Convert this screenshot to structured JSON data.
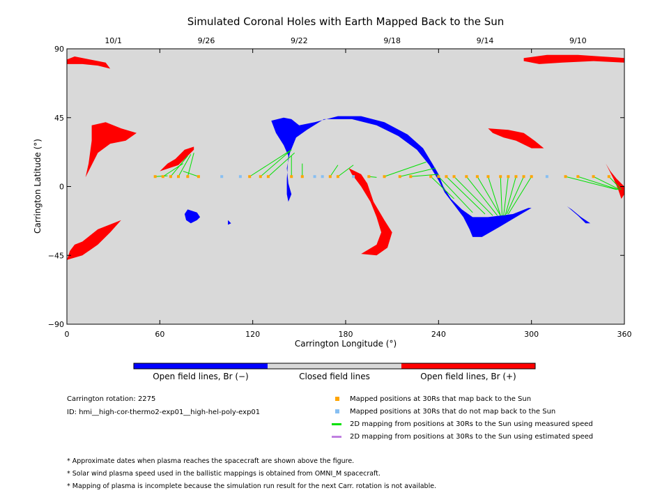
{
  "chart_data": {
    "type": "scatter",
    "title": "Simulated Coronal Holes with Earth Mapped Back to the Sun",
    "xlabel": "Carrington Longitude (°)",
    "ylabel": "Carrington Latitude (°)",
    "xlim": [
      0,
      360
    ],
    "ylim": [
      -90,
      90
    ],
    "x_ticks": [
      0,
      60,
      120,
      180,
      240,
      300,
      360
    ],
    "y_ticks": [
      -90,
      -45,
      0,
      45,
      90
    ],
    "y_tick_labels": [
      "−90",
      "−45",
      "0",
      "45",
      "90"
    ],
    "top_axis_dates": [
      {
        "label": "10/1",
        "lon": 30
      },
      {
        "label": "9/26",
        "lon": 90
      },
      {
        "label": "9/22",
        "lon": 150
      },
      {
        "label": "9/18",
        "lon": 210
      },
      {
        "label": "9/14",
        "lon": 270
      },
      {
        "label": "9/10",
        "lon": 330
      }
    ],
    "background_color": "#d9d9d9",
    "colors": {
      "open_negative": "#0000ff",
      "closed": "#d9d9d9",
      "open_positive": "#ff0000",
      "mapped": "#ffa500",
      "not_mapped": "#87bff2",
      "measured_line": "#00e000",
      "estimated_line": "#c080e0"
    },
    "coronal_holes": [
      {
        "polarity": "positive",
        "points": [
          [
            0,
            83
          ],
          [
            5,
            85
          ],
          [
            15,
            83
          ],
          [
            25,
            81
          ],
          [
            28,
            77
          ],
          [
            20,
            79
          ],
          [
            10,
            80
          ],
          [
            0,
            80
          ]
        ]
      },
      {
        "polarity": "positive",
        "points": [
          [
            295,
            84
          ],
          [
            310,
            86
          ],
          [
            330,
            86
          ],
          [
            345,
            85
          ],
          [
            360,
            84
          ],
          [
            360,
            81
          ],
          [
            340,
            82
          ],
          [
            320,
            81
          ],
          [
            305,
            80
          ],
          [
            295,
            82
          ]
        ]
      },
      {
        "polarity": "positive",
        "points": [
          [
            16,
            40
          ],
          [
            25,
            42
          ],
          [
            35,
            38
          ],
          [
            45,
            35
          ],
          [
            38,
            30
          ],
          [
            28,
            28
          ],
          [
            20,
            22
          ],
          [
            14,
            10
          ],
          [
            12,
            6
          ],
          [
            14,
            15
          ],
          [
            16,
            30
          ]
        ]
      },
      {
        "polarity": "positive",
        "points": [
          [
            60,
            10
          ],
          [
            72,
            14
          ],
          [
            75,
            17
          ],
          [
            82,
            24
          ],
          [
            82,
            26
          ],
          [
            76,
            24
          ],
          [
            70,
            18
          ],
          [
            65,
            15
          ]
        ]
      },
      {
        "polarity": "positive",
        "points": [
          [
            0,
            -48
          ],
          [
            10,
            -45
          ],
          [
            20,
            -38
          ],
          [
            28,
            -30
          ],
          [
            35,
            -22
          ],
          [
            20,
            -28
          ],
          [
            10,
            -36
          ],
          [
            5,
            -38
          ],
          [
            2,
            -42
          ]
        ]
      },
      {
        "polarity": "positive",
        "points": [
          [
            182,
            12
          ],
          [
            190,
            8
          ],
          [
            194,
            2
          ],
          [
            198,
            -10
          ],
          [
            205,
            -22
          ],
          [
            210,
            -30
          ],
          [
            207,
            -40
          ],
          [
            200,
            -45
          ],
          [
            190,
            -44
          ],
          [
            200,
            -38
          ],
          [
            203,
            -30
          ],
          [
            200,
            -20
          ],
          [
            196,
            -10
          ],
          [
            190,
            0
          ],
          [
            184,
            8
          ]
        ]
      },
      {
        "polarity": "positive",
        "points": [
          [
            272,
            38
          ],
          [
            285,
            37
          ],
          [
            295,
            35
          ],
          [
            302,
            30
          ],
          [
            308,
            25
          ],
          [
            300,
            25
          ],
          [
            290,
            30
          ],
          [
            282,
            32
          ],
          [
            275,
            35
          ]
        ]
      },
      {
        "polarity": "positive",
        "points": [
          [
            348,
            15
          ],
          [
            353,
            5
          ],
          [
            356,
            -2
          ],
          [
            358,
            -8
          ],
          [
            360,
            -5
          ],
          [
            360,
            0
          ],
          [
            355,
            5
          ],
          [
            351,
            10
          ]
        ]
      },
      {
        "polarity": "negative",
        "points": [
          [
            132,
            43
          ],
          [
            140,
            45
          ],
          [
            145,
            44
          ],
          [
            150,
            40
          ],
          [
            160,
            42
          ],
          [
            175,
            46
          ],
          [
            190,
            46
          ],
          [
            205,
            42
          ],
          [
            220,
            34
          ],
          [
            230,
            25
          ],
          [
            236,
            15
          ],
          [
            240,
            8
          ],
          [
            243,
            0
          ],
          [
            248,
            -8
          ],
          [
            255,
            -15
          ],
          [
            262,
            -20
          ],
          [
            272,
            -20
          ],
          [
            288,
            -18
          ],
          [
            298,
            -14
          ],
          [
            300,
            -14
          ],
          [
            290,
            -20
          ],
          [
            280,
            -26
          ],
          [
            268,
            -33
          ],
          [
            262,
            -33
          ],
          [
            260,
            -28
          ],
          [
            256,
            -20
          ],
          [
            250,
            -12
          ],
          [
            244,
            -4
          ],
          [
            240,
            4
          ],
          [
            234,
            14
          ],
          [
            226,
            24
          ],
          [
            214,
            33
          ],
          [
            200,
            40
          ],
          [
            184,
            44
          ],
          [
            166,
            44
          ],
          [
            155,
            37
          ],
          [
            148,
            32
          ],
          [
            144,
            22
          ],
          [
            142,
            12
          ],
          [
            143,
            2
          ],
          [
            145,
            -5
          ],
          [
            143,
            -10
          ],
          [
            142,
            -5
          ],
          [
            142,
            5
          ],
          [
            143,
            20
          ],
          [
            140,
            27
          ],
          [
            135,
            35
          ]
        ]
      },
      {
        "polarity": "negative",
        "points": [
          [
            78,
            -15
          ],
          [
            84,
            -17
          ],
          [
            86,
            -20
          ],
          [
            84,
            -22
          ],
          [
            80,
            -24
          ],
          [
            77,
            -22
          ],
          [
            76,
            -18
          ]
        ]
      },
      {
        "polarity": "negative",
        "points": [
          [
            323,
            -13
          ],
          [
            330,
            -19
          ],
          [
            335,
            -24
          ],
          [
            338,
            -24
          ],
          [
            332,
            -20
          ],
          [
            326,
            -15
          ]
        ]
      },
      {
        "polarity": "negative",
        "points": [
          [
            104,
            -22
          ],
          [
            106,
            -24
          ],
          [
            104,
            -25
          ]
        ]
      }
    ],
    "mapped_positions_30Rs": [
      {
        "lon": 57,
        "lat": 6.5,
        "maps_back": true,
        "sun_lon": 65,
        "sun_lat": 7
      },
      {
        "lon": 62,
        "lat": 6.5,
        "maps_back": true,
        "sun_lon": 75,
        "sun_lat": 15
      },
      {
        "lon": 67,
        "lat": 6.5,
        "maps_back": true,
        "sun_lon": 78,
        "sun_lat": 20
      },
      {
        "lon": 72,
        "lat": 6.5,
        "maps_back": true,
        "sun_lon": 80,
        "sun_lat": 21
      },
      {
        "lon": 78,
        "lat": 6.5,
        "maps_back": true,
        "sun_lon": 82,
        "sun_lat": 22
      },
      {
        "lon": 85,
        "lat": 6.5,
        "maps_back": true,
        "sun_lon": 75,
        "sun_lat": 10
      },
      {
        "lon": 100,
        "lat": 6.5,
        "maps_back": false
      },
      {
        "lon": 112,
        "lat": 6.5,
        "maps_back": false
      },
      {
        "lon": 118,
        "lat": 6.5,
        "maps_back": true,
        "sun_lon": 145,
        "sun_lat": 24
      },
      {
        "lon": 125,
        "lat": 6.5,
        "maps_back": true,
        "sun_lon": 145,
        "sun_lat": 24
      },
      {
        "lon": 130,
        "lat": 6.5,
        "maps_back": true,
        "sun_lon": 147,
        "sun_lat": 22
      },
      {
        "lon": 145,
        "lat": 6.5,
        "maps_back": true,
        "sun_lon": 145,
        "sun_lat": 20
      },
      {
        "lon": 152,
        "lat": 6.5,
        "maps_back": true,
        "sun_lon": 152,
        "sun_lat": 15
      },
      {
        "lon": 160,
        "lat": 6.5,
        "maps_back": false
      },
      {
        "lon": 165,
        "lat": 6.5,
        "maps_back": false
      },
      {
        "lon": 170,
        "lat": 6.5,
        "maps_back": true,
        "sun_lon": 175,
        "sun_lat": 14
      },
      {
        "lon": 175,
        "lat": 6.5,
        "maps_back": true,
        "sun_lon": 185,
        "sun_lat": 14
      },
      {
        "lon": 185,
        "lat": 6.5,
        "maps_back": false
      },
      {
        "lon": 195,
        "lat": 6.5,
        "maps_back": true,
        "sun_lon": 200,
        "sun_lat": 6
      },
      {
        "lon": 205,
        "lat": 6.5,
        "maps_back": true,
        "sun_lon": 232,
        "sun_lat": 16
      },
      {
        "lon": 215,
        "lat": 6.5,
        "maps_back": true,
        "sun_lon": 238,
        "sun_lat": 12
      },
      {
        "lon": 222,
        "lat": 6.5,
        "maps_back": true,
        "sun_lon": 240,
        "sun_lat": 8
      },
      {
        "lon": 235,
        "lat": 6.5,
        "maps_back": true,
        "sun_lon": 250,
        "sun_lat": -8
      },
      {
        "lon": 240,
        "lat": 6.5,
        "maps_back": true,
        "sun_lon": 262,
        "sun_lat": -17
      },
      {
        "lon": 245,
        "lat": 6.5,
        "maps_back": true,
        "sun_lon": 270,
        "sun_lat": -18
      },
      {
        "lon": 250,
        "lat": 6.5,
        "maps_back": true,
        "sun_lon": 275,
        "sun_lat": -19
      },
      {
        "lon": 258,
        "lat": 6.5,
        "maps_back": true,
        "sun_lon": 278,
        "sun_lat": -19
      },
      {
        "lon": 265,
        "lat": 6.5,
        "maps_back": true,
        "sun_lon": 280,
        "sun_lat": -19
      },
      {
        "lon": 272,
        "lat": 6.5,
        "maps_back": true,
        "sun_lon": 280,
        "sun_lat": -19
      },
      {
        "lon": 280,
        "lat": 6.5,
        "maps_back": true,
        "sun_lon": 281,
        "sun_lat": -19
      },
      {
        "lon": 285,
        "lat": 6.5,
        "maps_back": true,
        "sun_lon": 282,
        "sun_lat": -19
      },
      {
        "lon": 290,
        "lat": 6.5,
        "maps_back": true,
        "sun_lon": 283,
        "sun_lat": -19
      },
      {
        "lon": 295,
        "lat": 6.5,
        "maps_back": true,
        "sun_lon": 284,
        "sun_lat": -18
      },
      {
        "lon": 300,
        "lat": 6.5,
        "maps_back": true,
        "sun_lon": 285,
        "sun_lat": -18
      },
      {
        "lon": 310,
        "lat": 6.5,
        "maps_back": false
      },
      {
        "lon": 322,
        "lat": 6.5,
        "maps_back": true,
        "sun_lon": 355,
        "sun_lat": -2
      },
      {
        "lon": 330,
        "lat": 6.5,
        "maps_back": true,
        "sun_lon": 356,
        "sun_lat": -2
      },
      {
        "lon": 340,
        "lat": 6.5,
        "maps_back": true,
        "sun_lon": 357,
        "sun_lat": -2
      },
      {
        "lon": 350,
        "lat": 6.5,
        "maps_back": true,
        "sun_lon": 358,
        "sun_lat": -2
      }
    ]
  },
  "colorbar": {
    "labels": [
      "Open field lines, Br (−)",
      "Closed field lines",
      "Open field lines, Br (+)"
    ]
  },
  "info": {
    "rotation": "Carrington rotation: 2275",
    "id": "ID: hmi__high-cor-thermo2-exp01__high-hel-poly-exp01"
  },
  "legend": [
    "Mapped positions at 30Rs that map back to the Sun",
    "Mapped positions at 30Rs that do not map back to the Sun",
    "2D mapping from positions at 30Rs to the Sun using measured speed",
    "2D mapping from positions at 30Rs to the Sun using estimated speed"
  ],
  "notes": [
    "* Approximate dates when plasma reaches the spacecraft are shown above the figure.",
    "* Solar wind plasma speed used in the ballistic mappings is obtained from OMNI_M spacecraft.",
    "* Mapping of plasma is incomplete because the simulation run result for the next Carr. rotation is not available."
  ]
}
